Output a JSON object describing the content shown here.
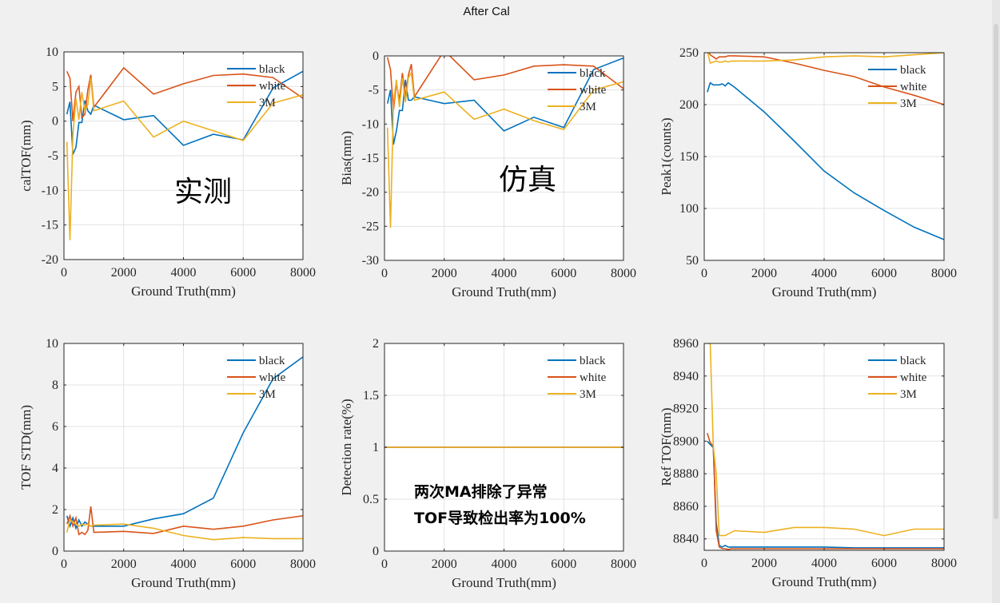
{
  "page_title": "After Cal",
  "colors": {
    "black": "#0072bd",
    "white": "#d95319",
    "3M": "#edb120"
  },
  "chart_data": [
    {
      "type": "line",
      "ylabel": "calTOF(mm)",
      "xlabel": "Ground Truth(mm)",
      "xlim": [
        0,
        8000
      ],
      "ylim": [
        -20,
        10
      ],
      "xticks": [
        0,
        2000,
        4000,
        6000,
        8000
      ],
      "yticks": [
        -20,
        -15,
        -10,
        -5,
        0,
        5,
        10
      ],
      "grid": true,
      "legend_position": "top-right",
      "annotation": "实测",
      "series": [
        {
          "name": "black",
          "x": [
            100,
            200,
            300,
            400,
            500,
            600,
            700,
            800,
            900,
            1000,
            2000,
            3000,
            4000,
            5000,
            6000,
            7000,
            8000
          ],
          "y": [
            1,
            2.8,
            -4.8,
            -3.8,
            -0.2,
            -0.2,
            3,
            1.5,
            1,
            2.3,
            0.2,
            0.8,
            -3.5,
            -1.9,
            -2.7,
            4.8,
            7.2
          ]
        },
        {
          "name": "white",
          "x": [
            100,
            200,
            300,
            400,
            500,
            600,
            700,
            800,
            900,
            1000,
            2000,
            3000,
            4000,
            5000,
            6000,
            7000,
            8000
          ],
          "y": [
            7.2,
            6.2,
            0,
            4.2,
            5,
            0.5,
            1,
            4.5,
            6.7,
            2,
            7.7,
            3.9,
            5.4,
            6.6,
            6.8,
            6.3,
            3.3
          ]
        },
        {
          "name": "3M",
          "x": [
            100,
            200,
            300,
            400,
            500,
            600,
            700,
            800,
            900,
            1000,
            2000,
            3000,
            4000,
            5000,
            6000,
            7000,
            8000
          ],
          "y": [
            -3,
            -17.2,
            -2,
            3.3,
            0.2,
            4.2,
            1.5,
            2.4,
            6.2,
            1.5,
            2.9,
            -2.3,
            0,
            -1.4,
            -2.8,
            2.6,
            3.8
          ]
        }
      ]
    },
    {
      "type": "line",
      "ylabel": "Bias(mm)",
      "xlabel": "Ground Truth(mm)",
      "xlim": [
        0,
        8000
      ],
      "ylim": [
        -30,
        0
      ],
      "xticks": [
        0,
        2000,
        4000,
        6000,
        8000
      ],
      "yticks": [
        -30,
        -25,
        -20,
        -15,
        -10,
        -5,
        0
      ],
      "grid": true,
      "legend_position": "top-right",
      "annotation": "仿真",
      "series": [
        {
          "name": "black",
          "x": [
            100,
            200,
            300,
            400,
            500,
            600,
            700,
            800,
            900,
            1000,
            2000,
            3000,
            4000,
            5000,
            6000,
            7000,
            8000
          ],
          "y": [
            -7,
            -5,
            -13,
            -11,
            -8,
            -8,
            -3.5,
            -6.5,
            -6.5,
            -6,
            -7,
            -6.5,
            -11,
            -9,
            -10.5,
            -2,
            -0.3
          ]
        },
        {
          "name": "white",
          "x": [
            100,
            200,
            300,
            400,
            500,
            600,
            700,
            800,
            900,
            1000,
            2000,
            3000,
            4000,
            5000,
            6000,
            7000,
            8000
          ],
          "y": [
            -0.2,
            -2,
            -8,
            -4,
            -6.5,
            -2.5,
            -6,
            -2.8,
            -1.2,
            -6,
            0.8,
            -3.5,
            -2.8,
            -1.5,
            -1.3,
            -1.5,
            -4.8
          ]
        },
        {
          "name": "3M",
          "x": [
            100,
            200,
            300,
            400,
            500,
            600,
            700,
            800,
            900,
            1000,
            2000,
            3000,
            4000,
            5000,
            6000,
            7000,
            8000
          ],
          "y": [
            -10.5,
            -25.2,
            -7,
            -3.5,
            -7.5,
            -3.2,
            -6.8,
            -3.2,
            -2.5,
            -6.5,
            -5.3,
            -9.3,
            -7.8,
            -9.5,
            -10.8,
            -5,
            -3.8
          ]
        }
      ]
    },
    {
      "type": "line",
      "ylabel": "Peak1(counts)",
      "xlabel": "Ground Truth(mm)",
      "xlim": [
        0,
        8000
      ],
      "ylim": [
        50,
        250
      ],
      "xticks": [
        0,
        2000,
        4000,
        6000,
        8000
      ],
      "yticks": [
        50,
        100,
        150,
        200,
        250
      ],
      "grid": true,
      "legend_position": "top-right",
      "series": [
        {
          "name": "black",
          "x": [
            100,
            200,
            300,
            400,
            500,
            600,
            700,
            800,
            900,
            1000,
            2000,
            3000,
            4000,
            5000,
            6000,
            7000,
            8000
          ],
          "y": [
            212,
            221,
            219,
            219,
            219,
            220,
            218,
            221,
            219,
            217,
            193,
            165,
            136,
            115,
            98,
            82,
            70
          ]
        },
        {
          "name": "white",
          "x": [
            100,
            200,
            300,
            400,
            500,
            600,
            700,
            800,
            900,
            1000,
            2000,
            3000,
            4000,
            5000,
            6000,
            7000,
            8000
          ],
          "y": [
            253,
            248,
            246,
            244,
            246,
            246,
            246,
            247,
            247,
            247,
            246,
            240,
            233,
            227,
            217,
            209,
            200
          ]
        },
        {
          "name": "3M",
          "x": [
            100,
            200,
            300,
            400,
            500,
            600,
            700,
            800,
            900,
            1000,
            2000,
            3000,
            4000,
            5000,
            6000,
            7000,
            8000
          ],
          "y": [
            252,
            240,
            241,
            242,
            241,
            241,
            242,
            241,
            242,
            242,
            242,
            243,
            246,
            247,
            246,
            248,
            250
          ]
        }
      ]
    },
    {
      "type": "line",
      "ylabel": "TOF STD(mm)",
      "xlabel": "Ground Truth(mm)",
      "xlim": [
        0,
        8000
      ],
      "ylim": [
        0,
        10
      ],
      "xticks": [
        0,
        2000,
        4000,
        6000,
        8000
      ],
      "yticks": [
        0,
        2,
        4,
        6,
        8,
        10
      ],
      "grid": true,
      "legend_position": "top-right",
      "series": [
        {
          "name": "black",
          "x": [
            100,
            200,
            300,
            400,
            500,
            600,
            700,
            800,
            900,
            1000,
            2000,
            3000,
            4000,
            5000,
            6000,
            7000,
            8000
          ],
          "y": [
            1.7,
            1.2,
            1.6,
            1.1,
            1.5,
            1.2,
            1.4,
            1.3,
            1.2,
            1.2,
            1.2,
            1.55,
            1.8,
            2.55,
            5.7,
            8.3,
            9.35
          ]
        },
        {
          "name": "white",
          "x": [
            100,
            200,
            300,
            400,
            500,
            600,
            700,
            800,
            900,
            1000,
            2000,
            3000,
            4000,
            5000,
            6000,
            7000,
            8000
          ],
          "y": [
            1.3,
            1.7,
            1.2,
            1.6,
            0.8,
            0.9,
            0.8,
            1,
            2.15,
            0.9,
            0.95,
            0.85,
            1.2,
            1.05,
            1.2,
            1.5,
            1.7
          ]
        },
        {
          "name": "3M",
          "x": [
            100,
            200,
            300,
            400,
            500,
            600,
            700,
            800,
            900,
            1000,
            2000,
            3000,
            4000,
            5000,
            6000,
            7000,
            8000
          ],
          "y": [
            0.9,
            1.5,
            1.4,
            1.3,
            1.2,
            1.3,
            1.25,
            1.3,
            1.2,
            1.25,
            1.3,
            1.1,
            0.75,
            0.55,
            0.65,
            0.6,
            0.6
          ]
        }
      ]
    },
    {
      "type": "line",
      "ylabel": "Detection rate(%)",
      "xlabel": "Ground Truth(mm)",
      "xlim": [
        0,
        8000
      ],
      "ylim": [
        0,
        2
      ],
      "xticks": [
        0,
        2000,
        4000,
        6000,
        8000
      ],
      "yticks": [
        0,
        0.5,
        1,
        1.5,
        2
      ],
      "grid": true,
      "legend_position": "top-right",
      "note_lines": [
        "两次MA排除了异常",
        "TOF导致检出率为100%"
      ],
      "series": [
        {
          "name": "black",
          "x": [
            0,
            8000
          ],
          "y": [
            1,
            1
          ]
        },
        {
          "name": "white",
          "x": [
            0,
            8000
          ],
          "y": [
            1,
            1
          ]
        },
        {
          "name": "3M",
          "x": [
            0,
            8000
          ],
          "y": [
            1,
            1
          ]
        }
      ]
    },
    {
      "type": "line",
      "ylabel": "Ref TOF(mm)",
      "xlabel": "Ground Truth(mm)",
      "xlim": [
        0,
        8000
      ],
      "ylim": [
        8833,
        8960
      ],
      "xticks": [
        0,
        2000,
        4000,
        6000,
        8000
      ],
      "yticks": [
        8840,
        8860,
        8880,
        8900,
        8920,
        8940,
        8960
      ],
      "grid": true,
      "legend_position": "top-right",
      "series": [
        {
          "name": "black",
          "x": [
            100,
            200,
            300,
            400,
            500,
            600,
            700,
            800,
            900,
            1000,
            2000,
            3000,
            4000,
            5000,
            6000,
            7000,
            8000
          ],
          "y": [
            8900,
            8898,
            8896,
            8850,
            8836,
            8835,
            8836,
            8835,
            8835,
            8835,
            8835,
            8835,
            8835,
            8834.5,
            8834.5,
            8834.5,
            8834.5
          ]
        },
        {
          "name": "white",
          "x": [
            100,
            200,
            300,
            400,
            500,
            600,
            700,
            800,
            900,
            1000,
            2000,
            3000,
            4000,
            5000,
            6000,
            7000,
            8000
          ],
          "y": [
            8905,
            8899,
            8897,
            8845,
            8835,
            8834,
            8834,
            8833.5,
            8834,
            8834,
            8834,
            8834,
            8834,
            8834,
            8834,
            8834,
            8834
          ]
        },
        {
          "name": "3M",
          "x": [
            100,
            200,
            300,
            400,
            500,
            600,
            700,
            800,
            900,
            1000,
            2000,
            3000,
            4000,
            5000,
            6000,
            7000,
            8000
          ],
          "y": [
            8960,
            8960,
            8897,
            8880,
            8842,
            8842,
            8842,
            8843,
            8844,
            8845,
            8844,
            8847,
            8847,
            8846,
            8842,
            8846,
            8846
          ]
        }
      ]
    }
  ]
}
